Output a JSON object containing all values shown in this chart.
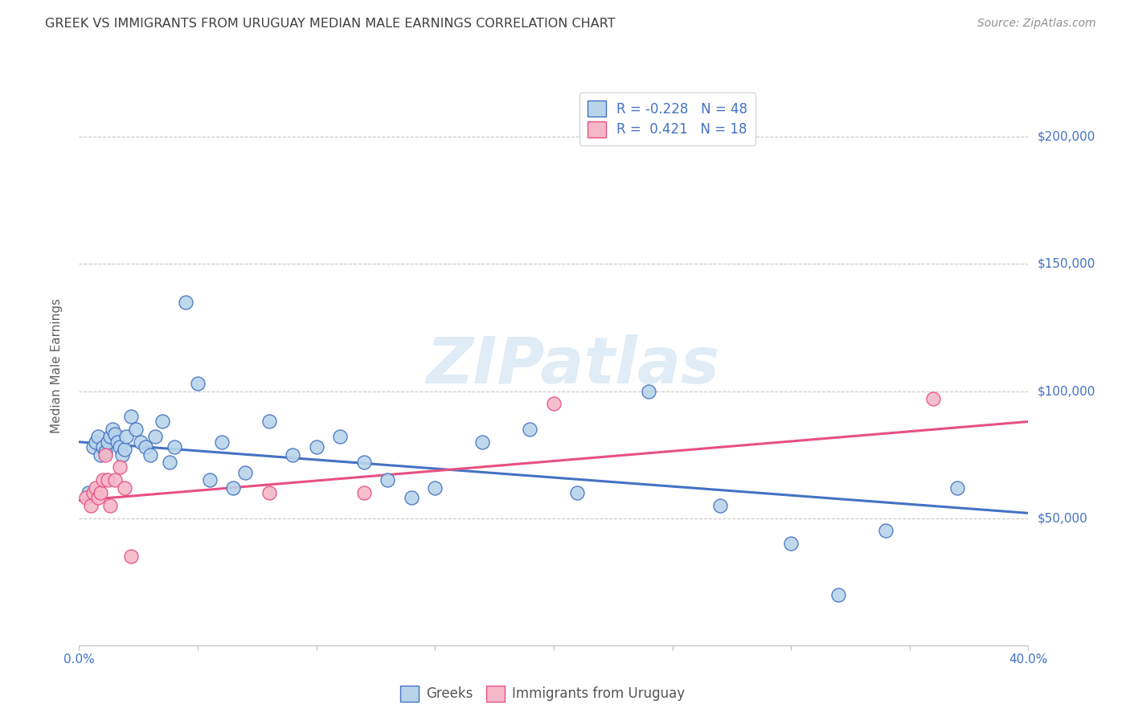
{
  "title": "GREEK VS IMMIGRANTS FROM URUGUAY MEDIAN MALE EARNINGS CORRELATION CHART",
  "source": "Source: ZipAtlas.com",
  "ylabel": "Median Male Earnings",
  "xlim": [
    0.0,
    0.4
  ],
  "ylim": [
    0,
    220000
  ],
  "yticks": [
    0,
    50000,
    100000,
    150000,
    200000
  ],
  "ytick_labels": [
    "",
    "$50,000",
    "$100,000",
    "$150,000",
    "$200,000"
  ],
  "xticks": [
    0.0,
    0.05,
    0.1,
    0.15,
    0.2,
    0.25,
    0.3,
    0.35,
    0.4
  ],
  "xtick_labels": [
    "0.0%",
    "",
    "",
    "",
    "",
    "",
    "",
    "",
    "40.0%"
  ],
  "watermark": "ZIPatlas",
  "legend_label_1": "R = -0.228   N = 48",
  "legend_label_2": "R =  0.421   N = 18",
  "blue_fill": "#b8d4ea",
  "pink_fill": "#f5b8c8",
  "line_blue": "#4472c4",
  "line_pink": "#e85080",
  "title_color": "#404040",
  "axis_color": "#4472c4",
  "tick_color": "#4472c4",
  "greek_scatter_x": [
    0.004,
    0.006,
    0.007,
    0.008,
    0.009,
    0.01,
    0.011,
    0.012,
    0.013,
    0.014,
    0.015,
    0.016,
    0.017,
    0.018,
    0.019,
    0.02,
    0.022,
    0.024,
    0.026,
    0.028,
    0.03,
    0.032,
    0.035,
    0.038,
    0.04,
    0.045,
    0.05,
    0.055,
    0.06,
    0.065,
    0.07,
    0.08,
    0.09,
    0.1,
    0.11,
    0.12,
    0.13,
    0.14,
    0.15,
    0.17,
    0.19,
    0.21,
    0.24,
    0.27,
    0.3,
    0.32,
    0.34,
    0.37
  ],
  "greek_scatter_y": [
    60000,
    78000,
    80000,
    82000,
    75000,
    78000,
    76000,
    80000,
    82000,
    85000,
    83000,
    80000,
    78000,
    75000,
    77000,
    82000,
    90000,
    85000,
    80000,
    78000,
    75000,
    82000,
    88000,
    72000,
    78000,
    135000,
    103000,
    65000,
    80000,
    62000,
    68000,
    88000,
    75000,
    78000,
    82000,
    72000,
    65000,
    58000,
    62000,
    80000,
    85000,
    60000,
    100000,
    55000,
    40000,
    20000,
    45000,
    62000
  ],
  "uruguay_scatter_x": [
    0.003,
    0.005,
    0.006,
    0.007,
    0.008,
    0.009,
    0.01,
    0.011,
    0.012,
    0.013,
    0.015,
    0.017,
    0.019,
    0.022,
    0.08,
    0.12,
    0.2,
    0.36
  ],
  "uruguay_scatter_y": [
    58000,
    55000,
    60000,
    62000,
    58000,
    60000,
    65000,
    75000,
    65000,
    55000,
    65000,
    70000,
    62000,
    35000,
    60000,
    60000,
    95000,
    97000
  ],
  "blue_line_x": [
    0.0,
    0.4
  ],
  "blue_line_y": [
    80000,
    52000
  ],
  "pink_line_x": [
    0.0,
    0.4
  ],
  "pink_line_y": [
    57000,
    88000
  ]
}
